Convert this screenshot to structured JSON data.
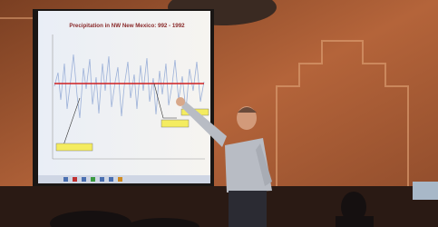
{
  "screen": {
    "title": "Precipitation in NW New Mexico: 992 - 1992"
  }
}
